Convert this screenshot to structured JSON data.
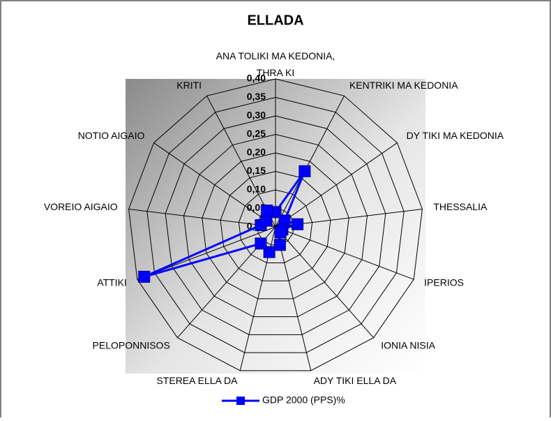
{
  "chart_data": {
    "type": "radar",
    "title": "ELLADA",
    "categories": [
      "ANA TOLIKI MA KEDONIA,\nTHRA KI",
      "KENTRIKI MA KEDONIA",
      "DY  TIKI MA KEDONIA",
      "THESSALIA",
      "IPERIOS",
      "IONIA NISIA",
      "ADY  TIKI ELLA DA",
      "STEREA ELLA DA",
      "PELOPONNISOS",
      "ATTIKI",
      "VOREIO AIGAIO",
      "NOTIO AIGAIO",
      "KRITI"
    ],
    "series": [
      {
        "name": "GDP 2000 (PPS)%",
        "color": "#0000ff",
        "values": [
          0.04,
          0.17,
          0.03,
          0.06,
          0.02,
          0.02,
          0.05,
          0.07,
          0.06,
          0.38,
          0.04,
          0.03,
          0.05
        ]
      }
    ],
    "ylim": [
      0,
      0.4
    ],
    "yticks": [
      {
        "value": 0,
        "label": "0,00"
      },
      {
        "value": 0.05,
        "label": "0,05"
      },
      {
        "value": 0.1,
        "label": "0,10"
      },
      {
        "value": 0.15,
        "label": "0,15"
      },
      {
        "value": 0.2,
        "label": "0,20"
      },
      {
        "value": 0.25,
        "label": "0,25"
      },
      {
        "value": 0.3,
        "label": "0,30"
      },
      {
        "value": 0.35,
        "label": "0,35"
      },
      {
        "value": 0.4,
        "label": "0,40"
      }
    ],
    "grid": true,
    "legend": "bottom"
  }
}
